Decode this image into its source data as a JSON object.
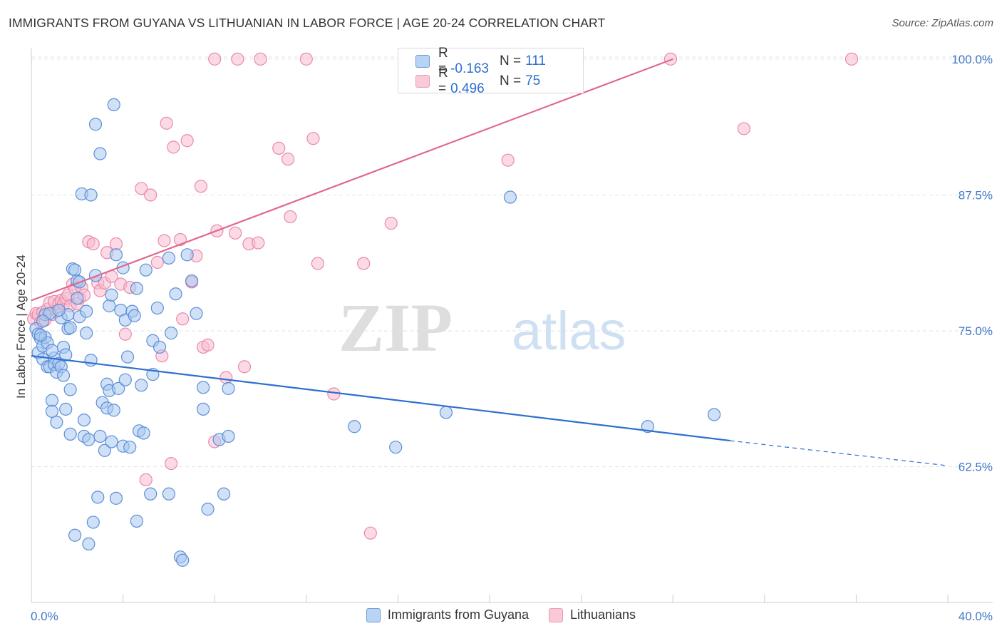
{
  "header": {
    "title": "IMMIGRANTS FROM GUYANA VS LITHUANIAN IN LABOR FORCE | AGE 20-24 CORRELATION CHART",
    "source": "Source: ZipAtlas.com"
  },
  "watermark": {
    "zip": "ZIP",
    "atlas": "atlas"
  },
  "legend": {
    "r_label": "R =",
    "n_label": "N =",
    "series": [
      {
        "name": "Immigrants from Guyana",
        "r": "-0.163",
        "n": "111"
      },
      {
        "name": "Lithuanians",
        "r": "0.496",
        "n": "75"
      }
    ]
  },
  "colors": {
    "guyana_fill": "#a9c8f0",
    "guyana_stroke": "#5b8fd6",
    "guyana_line": "#2e6fd0",
    "lithuanian_fill": "#f7bcd0",
    "lithuanian_stroke": "#e98aaa",
    "lithuanian_line": "#e0688f",
    "grid": "#e3e3e3",
    "tick_text": "#3e78c9"
  },
  "chart_data": {
    "type": "scatter",
    "title": "IMMIGRANTS FROM GUYANA VS LITHUANIAN IN LABOR FORCE | AGE 20-24 CORRELATION CHART",
    "xlabel": "",
    "ylabel": "In Labor Force | Age 20-24",
    "xlim": [
      0,
      40
    ],
    "ylim": [
      51,
      101.5
    ],
    "x_tick_labels": [
      "0.0%",
      "40.0%"
    ],
    "y_ticks": [
      62.5,
      75.0,
      87.5,
      100.0
    ],
    "y_tick_labels": [
      "62.5%",
      "75.0%",
      "87.5%",
      "100.0%"
    ],
    "grid": true,
    "legend_position": "top-center",
    "series": [
      {
        "name": "Immigrants from Guyana",
        "r": -0.163,
        "n": 111,
        "trend": {
          "x": [
            0,
            30.5
          ],
          "y": [
            72.7,
            64.9
          ],
          "dashed_to": [
            40,
            62.6
          ]
        },
        "points": [
          [
            0.2,
            75.2
          ],
          [
            0.3,
            74.7
          ],
          [
            0.3,
            73.0
          ],
          [
            0.4,
            74.3
          ],
          [
            0.5,
            73.6
          ],
          [
            0.5,
            72.4
          ],
          [
            0.6,
            76.5
          ],
          [
            0.6,
            74.4
          ],
          [
            0.7,
            73.9
          ],
          [
            0.7,
            71.7
          ],
          [
            0.8,
            71.7
          ],
          [
            0.8,
            76.6
          ],
          [
            0.9,
            68.6
          ],
          [
            0.9,
            67.6
          ],
          [
            1.0,
            72.5
          ],
          [
            1.0,
            71.9
          ],
          [
            1.1,
            71.2
          ],
          [
            1.1,
            66.6
          ],
          [
            1.2,
            72.0
          ],
          [
            1.3,
            71.7
          ],
          [
            1.3,
            76.2
          ],
          [
            1.4,
            73.5
          ],
          [
            1.5,
            67.8
          ],
          [
            1.5,
            72.8
          ],
          [
            1.6,
            75.2
          ],
          [
            1.6,
            76.5
          ],
          [
            1.7,
            65.5
          ],
          [
            1.7,
            69.6
          ],
          [
            1.8,
            80.7
          ],
          [
            1.9,
            80.6
          ],
          [
            1.9,
            56.2
          ],
          [
            2.0,
            79.6
          ],
          [
            2.0,
            78.0
          ],
          [
            2.1,
            76.3
          ],
          [
            2.2,
            87.6
          ],
          [
            2.3,
            66.8
          ],
          [
            2.3,
            65.3
          ],
          [
            2.4,
            74.8
          ],
          [
            2.4,
            76.8
          ],
          [
            2.5,
            65.0
          ],
          [
            2.5,
            55.4
          ],
          [
            2.6,
            87.5
          ],
          [
            2.7,
            57.4
          ],
          [
            2.8,
            94.0
          ],
          [
            2.9,
            59.7
          ],
          [
            3.0,
            91.3
          ],
          [
            3.0,
            65.3
          ],
          [
            3.1,
            68.4
          ],
          [
            3.2,
            64.0
          ],
          [
            3.3,
            67.9
          ],
          [
            3.3,
            70.1
          ],
          [
            3.4,
            69.5
          ],
          [
            3.4,
            77.3
          ],
          [
            3.5,
            64.8
          ],
          [
            3.6,
            95.8
          ],
          [
            3.6,
            67.7
          ],
          [
            3.7,
            82.0
          ],
          [
            3.7,
            59.6
          ],
          [
            3.8,
            69.7
          ],
          [
            3.9,
            76.9
          ],
          [
            4.0,
            80.8
          ],
          [
            4.0,
            64.4
          ],
          [
            4.1,
            76.0
          ],
          [
            4.1,
            70.5
          ],
          [
            4.2,
            72.6
          ],
          [
            4.3,
            64.3
          ],
          [
            4.4,
            76.8
          ],
          [
            4.5,
            76.4
          ],
          [
            4.6,
            57.5
          ],
          [
            4.7,
            65.8
          ],
          [
            4.8,
            70.0
          ],
          [
            4.9,
            65.6
          ],
          [
            5.0,
            80.6
          ],
          [
            5.2,
            60.0
          ],
          [
            5.3,
            71.0
          ],
          [
            5.3,
            74.1
          ],
          [
            5.6,
            73.5
          ],
          [
            6.0,
            81.7
          ],
          [
            6.0,
            60.0
          ],
          [
            6.1,
            74.8
          ],
          [
            6.5,
            54.2
          ],
          [
            6.6,
            53.9
          ],
          [
            6.8,
            82.0
          ],
          [
            7.0,
            79.6
          ],
          [
            7.5,
            69.8
          ],
          [
            7.5,
            67.8
          ],
          [
            7.7,
            58.6
          ],
          [
            8.2,
            65.0
          ],
          [
            8.4,
            60.0
          ],
          [
            8.6,
            69.7
          ],
          [
            8.6,
            65.3
          ],
          [
            14.1,
            66.2
          ],
          [
            15.9,
            64.3
          ],
          [
            18.1,
            67.5
          ],
          [
            20.9,
            87.3
          ],
          [
            26.9,
            66.2
          ],
          [
            29.8,
            67.3
          ],
          [
            0.4,
            74.6
          ],
          [
            0.9,
            73.2
          ],
          [
            1.2,
            76.9
          ],
          [
            1.7,
            75.3
          ],
          [
            2.1,
            79.5
          ],
          [
            2.8,
            80.1
          ],
          [
            3.5,
            78.3
          ],
          [
            4.6,
            78.9
          ],
          [
            5.5,
            77.1
          ],
          [
            6.3,
            78.4
          ],
          [
            7.2,
            76.6
          ],
          [
            0.5,
            75.9
          ],
          [
            1.4,
            70.9
          ],
          [
            2.6,
            72.3
          ]
        ]
      },
      {
        "name": "Lithuanians",
        "r": 0.496,
        "n": 75,
        "trend": {
          "x": [
            0,
            28.0
          ],
          "y": [
            77.8,
            100.0
          ]
        },
        "points": [
          [
            0.1,
            76.1
          ],
          [
            0.2,
            76.6
          ],
          [
            0.3,
            76.5
          ],
          [
            0.4,
            75.8
          ],
          [
            0.5,
            76.7
          ],
          [
            0.6,
            76.0
          ],
          [
            0.7,
            77.0
          ],
          [
            0.8,
            77.6
          ],
          [
            0.9,
            76.5
          ],
          [
            1.0,
            77.7
          ],
          [
            1.1,
            76.8
          ],
          [
            1.2,
            77.5
          ],
          [
            1.3,
            77.8
          ],
          [
            1.4,
            77.5
          ],
          [
            1.5,
            78.0
          ],
          [
            1.6,
            78.3
          ],
          [
            1.7,
            77.3
          ],
          [
            1.8,
            79.3
          ],
          [
            1.9,
            78.9
          ],
          [
            2.0,
            77.5
          ],
          [
            2.1,
            78.0
          ],
          [
            2.2,
            79.0
          ],
          [
            2.3,
            78.3
          ],
          [
            2.5,
            83.2
          ],
          [
            2.7,
            83.0
          ],
          [
            2.9,
            79.4
          ],
          [
            3.0,
            78.7
          ],
          [
            3.2,
            79.4
          ],
          [
            3.3,
            82.2
          ],
          [
            3.5,
            80.0
          ],
          [
            3.7,
            83.0
          ],
          [
            3.9,
            79.3
          ],
          [
            4.1,
            74.7
          ],
          [
            4.3,
            79.0
          ],
          [
            4.8,
            88.1
          ],
          [
            5.0,
            61.3
          ],
          [
            5.2,
            87.5
          ],
          [
            5.5,
            81.3
          ],
          [
            5.7,
            72.7
          ],
          [
            5.8,
            83.3
          ],
          [
            5.9,
            94.1
          ],
          [
            6.1,
            62.8
          ],
          [
            6.2,
            91.9
          ],
          [
            6.5,
            83.4
          ],
          [
            6.6,
            76.1
          ],
          [
            6.8,
            92.5
          ],
          [
            7.0,
            79.5
          ],
          [
            7.2,
            81.9
          ],
          [
            7.4,
            88.3
          ],
          [
            7.5,
            73.5
          ],
          [
            7.7,
            73.7
          ],
          [
            8.0,
            64.8
          ],
          [
            8.1,
            84.2
          ],
          [
            8.5,
            70.7
          ],
          [
            8.9,
            84.0
          ],
          [
            9.3,
            71.7
          ],
          [
            9.5,
            83.0
          ],
          [
            9.9,
            83.1
          ],
          [
            10.8,
            91.8
          ],
          [
            11.2,
            90.8
          ],
          [
            11.3,
            85.5
          ],
          [
            12.3,
            92.7
          ],
          [
            12.5,
            81.2
          ],
          [
            13.2,
            69.2
          ],
          [
            14.5,
            81.2
          ],
          [
            14.8,
            56.4
          ],
          [
            15.7,
            84.9
          ],
          [
            20.8,
            90.7
          ],
          [
            27.9,
            100.0
          ],
          [
            31.1,
            93.6
          ],
          [
            35.8,
            100.0
          ],
          [
            8.0,
            100.0
          ],
          [
            9.0,
            100.0
          ],
          [
            10.0,
            100.0
          ],
          [
            12.0,
            100.0
          ]
        ]
      }
    ]
  }
}
